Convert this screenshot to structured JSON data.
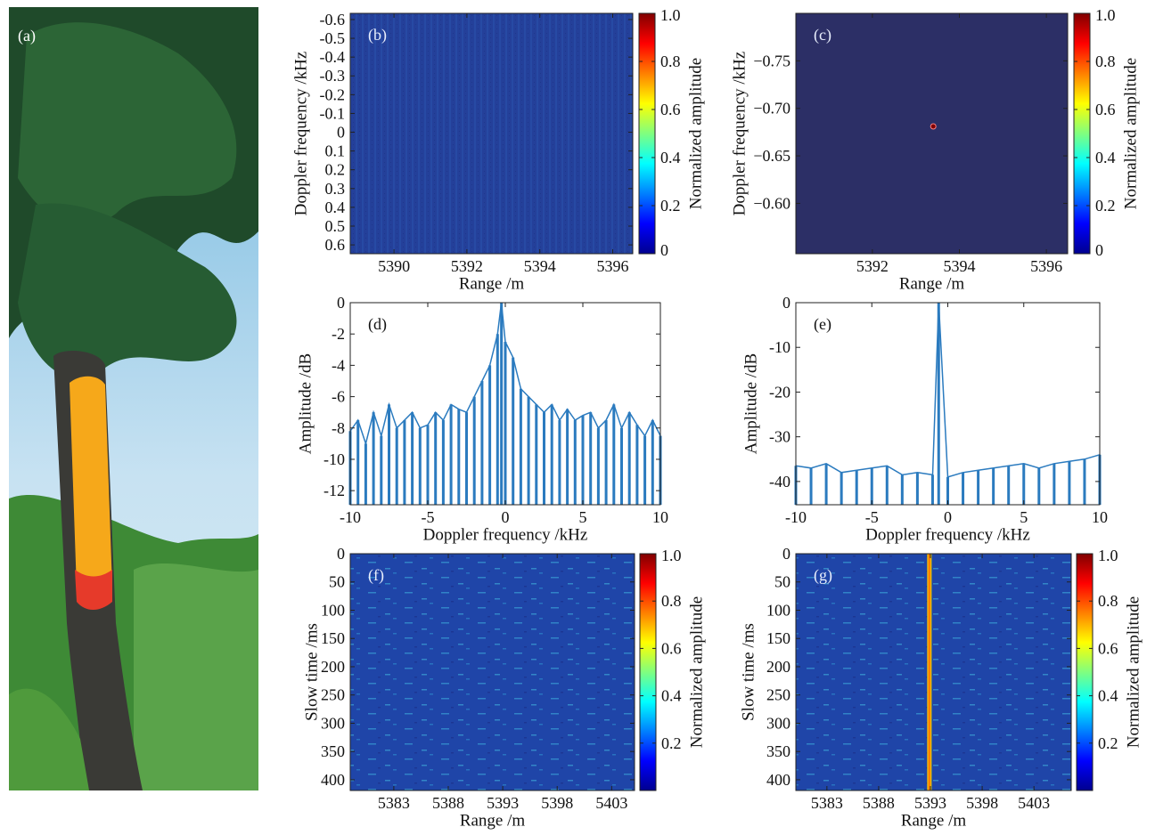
{
  "photo": {
    "label": "(a)"
  },
  "chart_data": [
    {
      "type": "heatmap",
      "label": "(b)",
      "xlabel": "Range /m",
      "ylabel": "Doppler frequency /kHz",
      "colorbar_label": "Normalized amplitude",
      "xlim": [
        5388.8,
        5396.55
      ],
      "ylim": [
        -0.633,
        0.647
      ],
      "y_inverted": true,
      "xticks": [
        5390,
        5392,
        5394,
        5396
      ],
      "yticks": [
        -0.6,
        -0.5,
        -0.4,
        -0.3,
        -0.2,
        -0.1,
        0,
        0.1,
        0.2,
        0.3,
        0.4,
        0.5,
        0.6
      ],
      "clim": [
        0,
        1
      ],
      "cticks": [
        0,
        0.2,
        0.4,
        0.6,
        0.8,
        {
          "value": 1,
          "label": "1.0"
        }
      ],
      "color": "#24409a"
    },
    {
      "type": "heatmap",
      "label": "(c)",
      "xlabel": "Range /m",
      "ylabel": "Doppler frequency /kHz",
      "colorbar_label": "Normalized amplitude",
      "xlim": [
        5390.24,
        5396.49
      ],
      "ylim": [
        -0.8,
        -0.547
      ],
      "y_inverted": true,
      "xticks": [
        5392,
        5394,
        5396
      ],
      "yticks": [
        {
          "value": -0.75,
          "label": "−0.75"
        },
        {
          "value": -0.7,
          "label": "−0.70"
        },
        {
          "value": -0.65,
          "label": "−0.65"
        },
        {
          "value": -0.6,
          "label": "−0.60"
        }
      ],
      "clim": [
        0,
        1
      ],
      "cticks": [
        0,
        0.2,
        0.4,
        0.6,
        0.8,
        {
          "value": 1,
          "label": "1.0"
        }
      ],
      "color": "#2c2f66",
      "peak": {
        "x": 5393.4,
        "y": -0.681,
        "value": 1
      }
    },
    {
      "type": "line",
      "label": "(d)",
      "xlabel": "Doppler frequency /kHz",
      "ylabel": "Amplitude /dB",
      "color": "#2b7bbf",
      "x": [
        -10,
        -9.5,
        -9,
        -8.5,
        -8,
        -7.5,
        -7,
        -6.5,
        -6,
        -5.5,
        -5,
        -4.5,
        -4,
        -3.5,
        -3,
        -2.5,
        -2,
        -1.5,
        -1,
        -0.5,
        -0.25,
        0,
        0.5,
        1,
        1.5,
        2,
        2.5,
        3,
        3.5,
        4,
        4.5,
        5,
        5.5,
        6,
        6.5,
        7,
        7.5,
        8,
        8.5,
        9,
        9.5,
        10
      ],
      "values": [
        -8.2,
        -7.5,
        -9,
        -7,
        -8.5,
        -6.5,
        -8,
        -7.5,
        -7,
        -8,
        -7.8,
        -7,
        -7.5,
        -6.5,
        -6.8,
        -7,
        -6,
        -5,
        -4,
        -2,
        0,
        -2.5,
        -3.5,
        -5.5,
        -6,
        -6.5,
        -7,
        -6.5,
        -7.5,
        -6.8,
        -7.5,
        -7.2,
        -7,
        -8,
        -7.5,
        -6.5,
        -8,
        -7,
        -7.8,
        -8.5,
        -7.5,
        -8.5
      ],
      "xlim": [
        -10,
        10
      ],
      "ylim": [
        -12.9,
        0
      ],
      "xticks": [
        -10,
        -5,
        0,
        5,
        10
      ],
      "yticks": [
        0,
        -2,
        -4,
        -6,
        -8,
        -10,
        -12
      ]
    },
    {
      "type": "line",
      "label": "(e)",
      "xlabel": "Doppler frequency /kHz",
      "ylabel": "Amplitude /dB",
      "color": "#2b7bbf",
      "x": [
        -10,
        -9,
        -8,
        -7,
        -6,
        -5,
        -4,
        -3,
        -2,
        -1,
        -0.6,
        0,
        1,
        2,
        3,
        4,
        5,
        6,
        7,
        8,
        9,
        10
      ],
      "values": [
        -36.5,
        -37,
        -36,
        -38,
        -37.5,
        -37,
        -36.5,
        -38.5,
        -38,
        -38.5,
        0,
        -39,
        -38,
        -37.5,
        -37,
        -36.5,
        -36,
        -37,
        -36,
        -35.5,
        -35,
        -34
      ],
      "xlim": [
        -10,
        10
      ],
      "ylim": [
        -45.2,
        0
      ],
      "xticks": [
        -10,
        -5,
        0,
        5,
        10
      ],
      "yticks": [
        0,
        -10,
        -20,
        -30,
        -40
      ]
    },
    {
      "type": "heatmap",
      "label": "(f)",
      "xlabel": "Range /m",
      "ylabel": "Slow time /ms",
      "colorbar_label": "Normalized amplitude",
      "xlim": [
        5379,
        5405.1
      ],
      "ylim": [
        0,
        419
      ],
      "y_inverted": true,
      "xticks": [
        5383,
        5388,
        5393,
        5398,
        5403
      ],
      "yticks": [
        0,
        50,
        100,
        150,
        200,
        250,
        300,
        350,
        400
      ],
      "clim": [
        0,
        1
      ],
      "cticks": [
        0.2,
        0.4,
        0.6,
        0.8,
        {
          "value": 1,
          "label": "1.0"
        }
      ],
      "color": "#1f45a8"
    },
    {
      "type": "heatmap",
      "label": "(g)",
      "xlabel": "Range /m",
      "ylabel": "Slow time /ms",
      "colorbar_label": "Normalized amplitude",
      "xlim": [
        5380,
        5406.6
      ],
      "ylim": [
        0,
        419
      ],
      "y_inverted": true,
      "xticks": [
        5383,
        5388,
        5393,
        5398,
        5403
      ],
      "yticks": [
        0,
        50,
        100,
        150,
        200,
        250,
        300,
        350,
        400
      ],
      "clim": [
        0,
        1
      ],
      "cticks": [
        0.2,
        0.4,
        0.6,
        0.8,
        {
          "value": 1,
          "label": "1.0"
        }
      ],
      "color": "#1f45a8",
      "ridge": {
        "x": 5392.9,
        "value": 0.8
      }
    }
  ]
}
